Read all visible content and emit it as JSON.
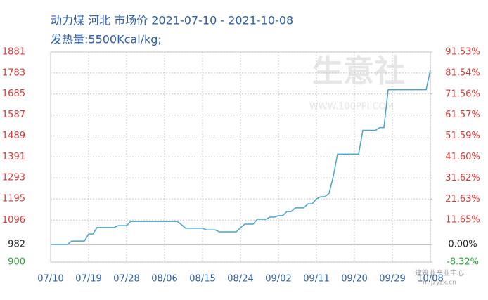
{
  "chart_data": {
    "type": "line",
    "title": "动力煤 河北 市场价 2021-07-10 - 2021-10-08",
    "subtitle": "发热量:5500Kcal/kg;",
    "watermark": "生意社",
    "watermark_url": "WWW.100PPI.COM",
    "corner_mark": "建筑业产业中心",
    "corner_url": "m.jzyzx.cn",
    "categories": [
      "07/10",
      null,
      null,
      null,
      null,
      null,
      null,
      null,
      null,
      "07/19",
      null,
      null,
      null,
      null,
      null,
      null,
      null,
      null,
      "07/28",
      null,
      null,
      null,
      null,
      null,
      null,
      null,
      null,
      "08/06",
      null,
      null,
      null,
      null,
      null,
      null,
      null,
      null,
      "08/15",
      null,
      null,
      null,
      null,
      null,
      null,
      null,
      null,
      "08/24",
      null,
      null,
      null,
      null,
      null,
      null,
      null,
      null,
      "09/02",
      null,
      null,
      null,
      null,
      null,
      null,
      null,
      null,
      "09/11",
      null,
      null,
      null,
      null,
      null,
      null,
      null,
      null,
      "09/20",
      null,
      null,
      null,
      null,
      null,
      null,
      null,
      null,
      "09/29",
      null,
      null,
      null,
      null,
      null,
      null,
      null,
      null,
      "10/08"
    ],
    "series": [
      {
        "name": "动力煤",
        "color": "#4aa3c8",
        "values": [
          982,
          982,
          982,
          982,
          982,
          998,
          998,
          998,
          998,
          1031,
          1031,
          1061,
          1061,
          1061,
          1061,
          1061,
          1070,
          1070,
          1070,
          1090,
          1090,
          1090,
          1090,
          1090,
          1090,
          1090,
          1090,
          1090,
          1090,
          1090,
          1090,
          1075,
          1058,
          1058,
          1058,
          1058,
          1058,
          1050,
          1050,
          1050,
          1041,
          1041,
          1041,
          1041,
          1041,
          1060,
          1077,
          1077,
          1077,
          1100,
          1100,
          1100,
          1110,
          1110,
          1117,
          1117,
          1136,
          1136,
          1153,
          1153,
          1153,
          1172,
          1172,
          1195,
          1205,
          1205,
          1221,
          1300,
          1404,
          1404,
          1404,
          1404,
          1404,
          1404,
          1515,
          1515,
          1515,
          1515,
          1528,
          1528,
          1705,
          1705,
          1705,
          1705,
          1705,
          1705,
          1705,
          1705,
          1705,
          1705,
          1796
        ]
      }
    ],
    "ylim": [
      900,
      1881
    ],
    "yticks": [
      900,
      982,
      1096,
      1195,
      1293,
      1391,
      1489,
      1587,
      1685,
      1783,
      1881
    ],
    "y2lim": [
      -8.32,
      91.53
    ],
    "y2ticks": [
      {
        "value": -8.32,
        "label": "-8.32%"
      },
      {
        "value": 0,
        "label": "0.00%"
      },
      {
        "value": 11.65,
        "label": "11.65%"
      },
      {
        "value": 21.63,
        "label": "21.63%"
      },
      {
        "value": 31.62,
        "label": "31.62%"
      },
      {
        "value": 41.6,
        "label": "41.60%"
      },
      {
        "value": 51.59,
        "label": "51.59%"
      },
      {
        "value": 61.57,
        "label": "61.57%"
      },
      {
        "value": 71.56,
        "label": "71.56%"
      },
      {
        "value": 81.54,
        "label": "81.54%"
      },
      {
        "value": 91.53,
        "label": "91.53%"
      }
    ],
    "grid": true,
    "up_color": "#e03434",
    "down_color": "#2e9e3a",
    "base_color": "#222222"
  }
}
